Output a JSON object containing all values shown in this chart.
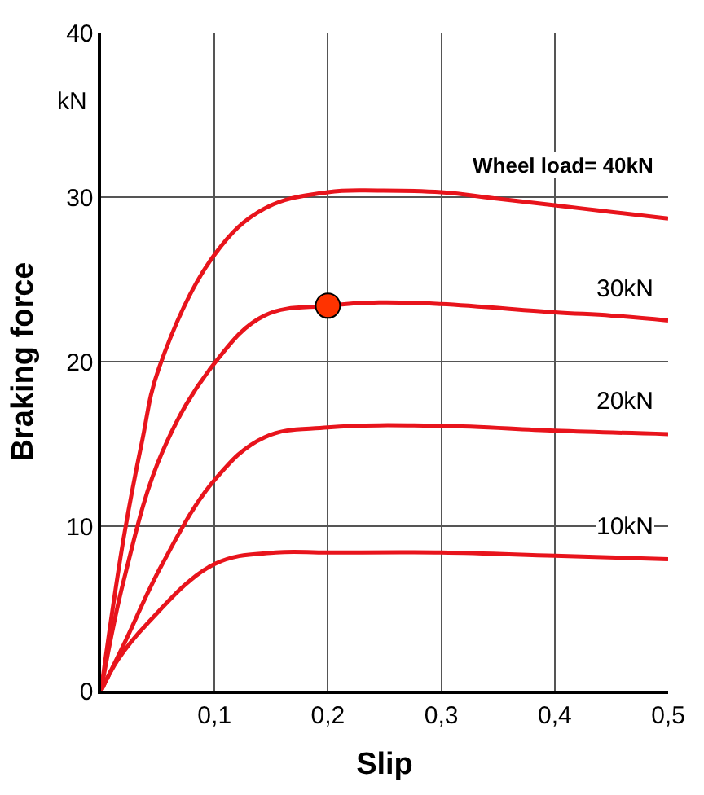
{
  "chart_data": {
    "type": "line",
    "xlabel": "Slip",
    "ylabel": "Braking force",
    "xlim": [
      0,
      0.5
    ],
    "ylim": [
      0,
      40
    ],
    "xticks": [
      {
        "value": 0,
        "label": null
      },
      {
        "value": 0.1,
        "label": "0,1"
      },
      {
        "value": 0.2,
        "label": "0,2"
      },
      {
        "value": 0.3,
        "label": "0,3"
      },
      {
        "value": 0.4,
        "label": "0,4"
      },
      {
        "value": 0.5,
        "label": "0,5"
      }
    ],
    "yticks": [
      0,
      10,
      20,
      30,
      40
    ],
    "grid": true,
    "marker": "none",
    "line_style": "solid",
    "series": [
      {
        "name": "Wheel load= 40kN",
        "color": "#e8141c",
        "x": [
          0,
          0.02,
          0.036,
          0.051,
          0.1,
          0.144,
          0.2,
          0.245,
          0.3,
          0.35,
          0.4,
          0.45,
          0.5
        ],
        "values": [
          0,
          9.3,
          15.1,
          19.6,
          26.5,
          29.3,
          30.3,
          30.4,
          30.3,
          29.9,
          29.5,
          29.1,
          28.7
        ]
      },
      {
        "name": "30kN",
        "color": "#e8141c",
        "x": [
          0,
          0.02,
          0.054,
          0.1,
          0.144,
          0.2,
          0.245,
          0.3,
          0.4,
          0.45,
          0.5
        ],
        "values": [
          0,
          6.7,
          14.5,
          19.9,
          22.8,
          23.4,
          23.6,
          23.5,
          23.0,
          22.8,
          22.5
        ]
      },
      {
        "name": "20kN",
        "color": "#e8141c",
        "x": [
          0,
          0.02,
          0.054,
          0.1,
          0.144,
          0.2,
          0.3,
          0.4,
          0.5
        ],
        "values": [
          0,
          2.8,
          7.7,
          12.8,
          15.4,
          16.0,
          16.1,
          15.8,
          15.6
        ]
      },
      {
        "name": "10kN",
        "color": "#e8141c",
        "x": [
          0,
          0.015,
          0.041,
          0.1,
          0.154,
          0.2,
          0.3,
          0.4,
          0.5
        ],
        "values": [
          0,
          1.9,
          4.1,
          7.7,
          8.4,
          8.4,
          8.4,
          8.2,
          8.0
        ]
      },
      {
        "type": "scatter",
        "marker": "circle",
        "color": "#ff3300",
        "x": [
          0.2
        ],
        "values": [
          23.4
        ]
      }
    ],
    "annotations": [
      "kN"
    ]
  }
}
